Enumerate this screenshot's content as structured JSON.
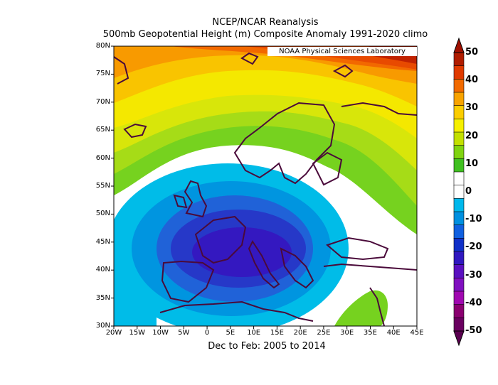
{
  "title": "NCEP/NCAR Reanalysis",
  "subtitle": "500mb Geopotential Height (m) Composite Anomaly 1991-2020 climo",
  "period": "Dec to Feb: 2005 to 2014",
  "credit": "NOAA Physical Sciences Laboratory",
  "map": {
    "lon_range": [
      -20,
      45
    ],
    "lat_range": [
      30,
      80
    ],
    "lat_ticks": [
      "30N",
      "35N",
      "40N",
      "45N",
      "50N",
      "55N",
      "60N",
      "65N",
      "70N",
      "75N",
      "80N"
    ],
    "lon_ticks": [
      "20W",
      "15W",
      "10W",
      "5W",
      "0",
      "5E",
      "10E",
      "15E",
      "20E",
      "25E",
      "30E",
      "35E",
      "40E",
      "45E"
    ],
    "anomaly_centers": [
      {
        "lon": 6,
        "lat": 42,
        "value": -25,
        "type": "low"
      },
      {
        "lon": 43,
        "lat": 79,
        "value": 50,
        "type": "high"
      },
      {
        "lon": 34,
        "lat": 33,
        "value": 10,
        "type": "high"
      }
    ]
  },
  "colorbar": {
    "labels": [
      "50",
      "40",
      "30",
      "20",
      "10",
      "0",
      "-10",
      "-20",
      "-30",
      "-40",
      "-50"
    ],
    "colors": [
      "#b01c00",
      "#e03a00",
      "#f26a00",
      "#f8a300",
      "#fbcd00",
      "#f6f000",
      "#c3e000",
      "#80d410",
      "#40c020",
      "#ffffff",
      "#ffffff",
      "#00b8ec",
      "#0090e0",
      "#1060e0",
      "#1030c8",
      "#3018c0",
      "#5a10c0",
      "#8010c0",
      "#a008b0",
      "#8a0070",
      "#6a0060"
    ],
    "colors_top_to_bottom_note": ""
  }
}
